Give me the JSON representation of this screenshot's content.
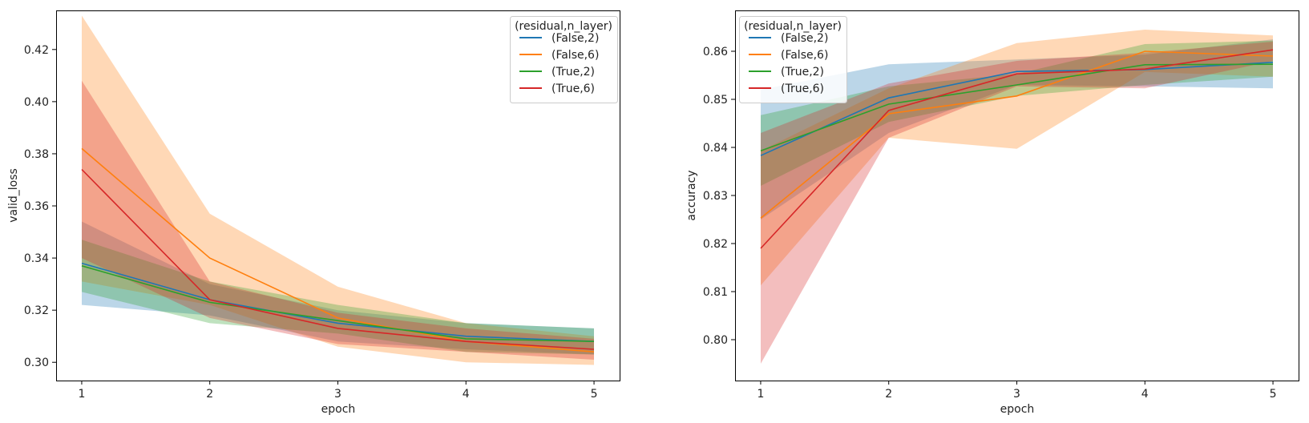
{
  "chart_data": [
    {
      "type": "line",
      "xlabel": "epoch",
      "ylabel": "valid_loss",
      "x": [
        1,
        2,
        3,
        4,
        5
      ],
      "xlim": [
        0.8,
        5.2
      ],
      "ylim": [
        0.293,
        0.435
      ],
      "yticks": [
        0.3,
        0.32,
        0.34,
        0.36,
        0.38,
        0.4,
        0.42
      ],
      "ytick_labels": [
        "0.30",
        "0.32",
        "0.34",
        "0.36",
        "0.38",
        "0.40",
        "0.42"
      ],
      "xtick_labels": [
        "1",
        "2",
        "3",
        "4",
        "5"
      ],
      "grid": false,
      "legend": {
        "title": "(residual,n_layer)",
        "position": "top-right"
      },
      "series": [
        {
          "name": "(False,2)",
          "color": "#1f77b4",
          "values": [
            0.338,
            0.324,
            0.315,
            0.31,
            0.308
          ],
          "lower": [
            0.322,
            0.318,
            0.308,
            0.305,
            0.303
          ],
          "upper": [
            0.354,
            0.33,
            0.32,
            0.315,
            0.313
          ]
        },
        {
          "name": "(False,6)",
          "color": "#ff7f0e",
          "values": [
            0.382,
            0.34,
            0.317,
            0.308,
            0.304
          ],
          "lower": [
            0.331,
            0.322,
            0.306,
            0.3,
            0.299
          ],
          "upper": [
            0.433,
            0.357,
            0.329,
            0.315,
            0.31
          ]
        },
        {
          "name": "(True,2)",
          "color": "#2ca02c",
          "values": [
            0.337,
            0.323,
            0.316,
            0.309,
            0.308
          ],
          "lower": [
            0.327,
            0.315,
            0.311,
            0.304,
            0.303
          ],
          "upper": [
            0.347,
            0.331,
            0.322,
            0.315,
            0.313
          ]
        },
        {
          "name": "(True,6)",
          "color": "#d62728",
          "values": [
            0.374,
            0.324,
            0.313,
            0.308,
            0.305
          ],
          "lower": [
            0.34,
            0.317,
            0.307,
            0.304,
            0.301
          ],
          "upper": [
            0.408,
            0.331,
            0.319,
            0.313,
            0.309
          ]
        }
      ]
    },
    {
      "type": "line",
      "xlabel": "epoch",
      "ylabel": "accuracy",
      "x": [
        1,
        2,
        3,
        4,
        5
      ],
      "xlim": [
        0.8,
        5.2
      ],
      "ylim": [
        0.7915,
        0.8685
      ],
      "yticks": [
        0.8,
        0.81,
        0.82,
        0.83,
        0.84,
        0.85,
        0.86
      ],
      "ytick_labels": [
        "0.80",
        "0.81",
        "0.82",
        "0.83",
        "0.84",
        "0.85",
        "0.86"
      ],
      "xtick_labels": [
        "1",
        "2",
        "3",
        "4",
        "5"
      ],
      "grid": false,
      "legend": {
        "title": "(residual,n_layer)",
        "position": "top-left"
      },
      "series": [
        {
          "name": "(False,2)",
          "color": "#1f77b4",
          "values": [
            0.8383,
            0.8503,
            0.8558,
            0.8562,
            0.8577
          ],
          "lower": [
            0.825,
            0.843,
            0.853,
            0.8527,
            0.8523
          ],
          "upper": [
            0.852,
            0.8573,
            0.8583,
            0.8593,
            0.8625
          ]
        },
        {
          "name": "(False,6)",
          "color": "#ff7f0e",
          "values": [
            0.8253,
            0.847,
            0.8507,
            0.86,
            0.859
          ],
          "lower": [
            0.8113,
            0.842,
            0.8397,
            0.8557,
            0.8547
          ],
          "upper": [
            0.8393,
            0.8523,
            0.8617,
            0.8645,
            0.8633
          ]
        },
        {
          "name": "(True,2)",
          "color": "#2ca02c",
          "values": [
            0.8393,
            0.849,
            0.853,
            0.8572,
            0.8573
          ],
          "lower": [
            0.832,
            0.8453,
            0.8507,
            0.853,
            0.8547
          ],
          "upper": [
            0.8467,
            0.8527,
            0.8553,
            0.8615,
            0.8622
          ]
        },
        {
          "name": "(True,6)",
          "color": "#d62728",
          "values": [
            0.819,
            0.8477,
            0.8553,
            0.8563,
            0.8603
          ],
          "lower": [
            0.795,
            0.842,
            0.8527,
            0.8523,
            0.858
          ],
          "upper": [
            0.843,
            0.8533,
            0.858,
            0.8597,
            0.862
          ]
        }
      ]
    }
  ]
}
